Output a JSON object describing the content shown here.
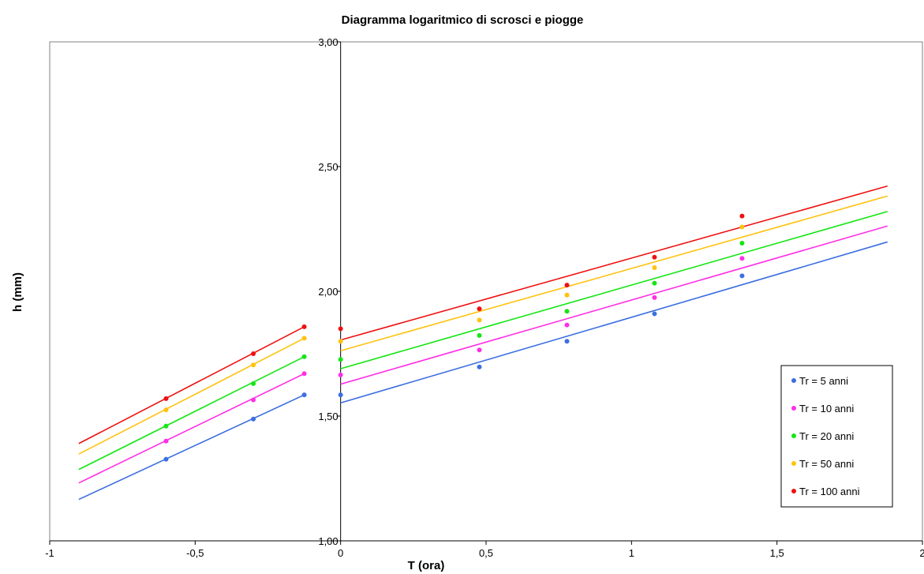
{
  "chart_data": {
    "type": "scatter",
    "title": "Diagramma logaritmico di scrosci e piogge",
    "xlabel": "T (ora)",
    "ylabel": "h (mm)",
    "xlim": [
      -1,
      2
    ],
    "ylim": [
      1.0,
      3.0
    ],
    "x_ticks": [
      -1,
      -0.5,
      0,
      0.5,
      1,
      1.5,
      2
    ],
    "x_tick_labels": [
      "-1",
      "-0,5",
      "0",
      "0,5",
      "1",
      "1,5",
      "2"
    ],
    "y_ticks": [
      1.0,
      1.5,
      2.0,
      2.5,
      3.0
    ],
    "y_tick_labels": [
      "1,00",
      "1,50",
      "2,00",
      "2,50",
      "3,00"
    ],
    "grid": false,
    "legend_position": "right",
    "series": [
      {
        "name": "Tr = 5 anni",
        "color": "#3c6fe0",
        "points": [
          [
            -0.6,
            1.327
          ],
          [
            -0.3,
            1.488
          ],
          [
            -0.125,
            1.585
          ],
          [
            0,
            1.585
          ],
          [
            0.477,
            1.697
          ],
          [
            0.778,
            1.8
          ],
          [
            1.079,
            1.91
          ],
          [
            1.38,
            2.062
          ]
        ],
        "fit_lines": [
          [
            [
              -0.9,
              1.166
            ],
            [
              -0.125,
              1.585
            ]
          ],
          [
            [
              0,
              1.553
            ],
            [
              1.88,
              2.198
            ]
          ]
        ]
      },
      {
        "name": "Tr = 10 anni",
        "color": "#ff2fe5",
        "points": [
          [
            -0.6,
            1.4
          ],
          [
            -0.3,
            1.565
          ],
          [
            -0.125,
            1.67
          ],
          [
            0,
            1.665
          ],
          [
            0.477,
            1.765
          ],
          [
            0.778,
            1.865
          ],
          [
            1.079,
            1.975
          ],
          [
            1.38,
            2.132
          ]
        ],
        "fit_lines": [
          [
            [
              -0.9,
              1.232
            ],
            [
              -0.125,
              1.67
            ]
          ],
          [
            [
              0,
              1.628
            ],
            [
              1.88,
              2.262
            ]
          ]
        ]
      },
      {
        "name": "Tr = 20 anni",
        "color": "#14e614",
        "points": [
          [
            -0.6,
            1.46
          ],
          [
            -0.3,
            1.63
          ],
          [
            -0.125,
            1.738
          ],
          [
            0,
            1.727
          ],
          [
            0.477,
            1.823
          ],
          [
            0.778,
            1.92
          ],
          [
            1.079,
            2.033
          ],
          [
            1.38,
            2.193
          ]
        ],
        "fit_lines": [
          [
            [
              -0.9,
              1.286
            ],
            [
              -0.125,
              1.738
            ]
          ],
          [
            [
              0,
              1.69
            ],
            [
              1.88,
              2.32
            ]
          ]
        ]
      },
      {
        "name": "Tr = 50 anni",
        "color": "#ffc20e",
        "points": [
          [
            -0.6,
            1.525
          ],
          [
            -0.3,
            1.705
          ],
          [
            -0.125,
            1.812
          ],
          [
            0,
            1.8
          ],
          [
            0.477,
            1.885
          ],
          [
            0.778,
            1.985
          ],
          [
            1.079,
            2.095
          ],
          [
            1.38,
            2.258
          ]
        ],
        "fit_lines": [
          [
            [
              -0.9,
              1.348
            ],
            [
              -0.125,
              1.812
            ]
          ],
          [
            [
              0,
              1.762
            ],
            [
              1.88,
              2.382
            ]
          ]
        ]
      },
      {
        "name": "Tr = 100 anni",
        "color": "#ee1111",
        "points": [
          [
            -0.6,
            1.57
          ],
          [
            -0.3,
            1.75
          ],
          [
            -0.125,
            1.858
          ],
          [
            0,
            1.85
          ],
          [
            0.477,
            1.93
          ],
          [
            0.778,
            2.025
          ],
          [
            1.079,
            2.137
          ],
          [
            1.38,
            2.302
          ]
        ],
        "fit_lines": [
          [
            [
              -0.9,
              1.39
            ],
            [
              -0.125,
              1.858
            ]
          ],
          [
            [
              0,
              1.805
            ],
            [
              1.88,
              2.422
            ]
          ]
        ]
      }
    ]
  }
}
